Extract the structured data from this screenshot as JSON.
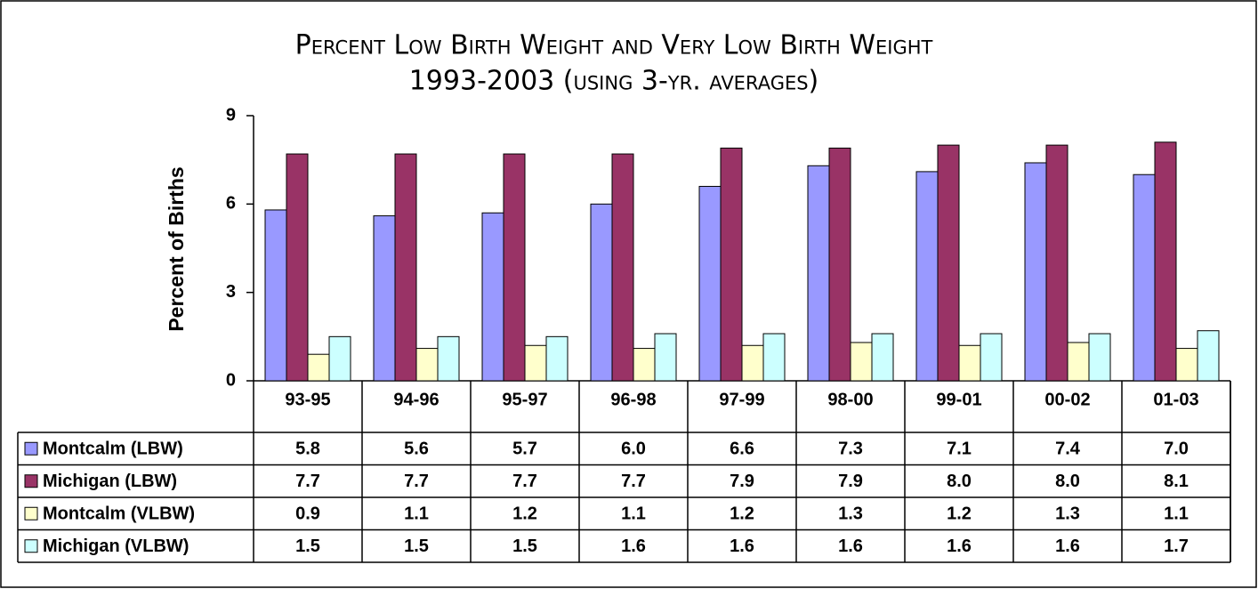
{
  "chart_data": {
    "type": "bar",
    "title": "Percent Low Birth Weight and Very Low Birth Weight",
    "subtitle": "1993-2003 (using 3-yr. averages)",
    "y_label": "Percent of Births",
    "categories": [
      "93-95",
      "94-96",
      "95-97",
      "96-98",
      "97-99",
      "98-00",
      "99-01",
      "00-02",
      "01-03"
    ],
    "series": [
      {
        "name": "Montcalm (LBW)",
        "color": "#9999ff",
        "values": [
          5.8,
          5.6,
          5.7,
          6.0,
          6.6,
          7.3,
          7.1,
          7.4,
          7.0
        ],
        "value_labels": [
          "5.8",
          "5.6",
          "5.7",
          "6.0",
          "6.6",
          "7.3",
          "7.1",
          "7.4",
          "7.0"
        ]
      },
      {
        "name": "Michigan (LBW)",
        "color": "#993366",
        "values": [
          7.7,
          7.7,
          7.7,
          7.7,
          7.9,
          7.9,
          8.0,
          8.0,
          8.1
        ],
        "value_labels": [
          "7.7",
          "7.7",
          "7.7",
          "7.7",
          "7.9",
          "7.9",
          "8.0",
          "8.0",
          "8.1"
        ]
      },
      {
        "name": "Montcalm (VLBW)",
        "color": "#ffffcc",
        "values": [
          0.9,
          1.1,
          1.2,
          1.1,
          1.2,
          1.3,
          1.2,
          1.3,
          1.1
        ],
        "value_labels": [
          "0.9",
          "1.1",
          "1.2",
          "1.1",
          "1.2",
          "1.3",
          "1.2",
          "1.3",
          "1.1"
        ]
      },
      {
        "name": "Michigan (VLBW)",
        "color": "#ccffff",
        "values": [
          1.5,
          1.5,
          1.5,
          1.6,
          1.6,
          1.6,
          1.6,
          1.6,
          1.7
        ],
        "value_labels": [
          "1.5",
          "1.5",
          "1.5",
          "1.6",
          "1.6",
          "1.6",
          "1.6",
          "1.6",
          "1.7"
        ]
      }
    ],
    "ylim": [
      0,
      9
    ],
    "yticks": [
      0,
      3,
      6,
      9
    ],
    "grid": false
  }
}
